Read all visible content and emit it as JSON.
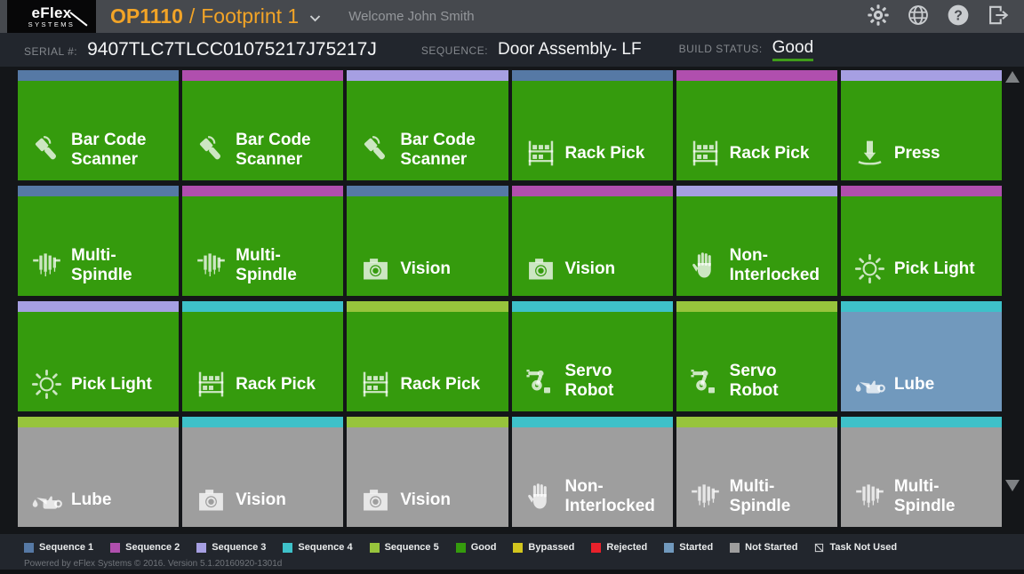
{
  "header": {
    "logo_line1": "eFlex",
    "logo_line2": "SYSTEMS",
    "station": "OP1110",
    "title_separator": "/",
    "footprint": "Footprint 1",
    "welcome": "Welcome John Smith",
    "help_glyph": "?"
  },
  "status_bar": {
    "serial_label": "SERIAL #:",
    "serial_value": "9407TLC7TLCC01075217J75217J",
    "sequence_label": "SEQUENCE:",
    "sequence_value": "Door Assembly- LF",
    "build_status_label": "BUILD STATUS:",
    "build_status_value": "Good"
  },
  "colors": {
    "sequence1": "#5679a5",
    "sequence2": "#b04fae",
    "sequence3": "#a69fe2",
    "sequence4": "#3ec1c9",
    "sequence5": "#97c43c",
    "good": "#359b0d",
    "bypassed": "#d2c51e",
    "rejected": "#e8212b",
    "started": "#7199bd",
    "not_started": "#9e9e9e",
    "accent_orange": "#f2a427",
    "status_underline": "#3f9d19"
  },
  "tiles": [
    {
      "label": "Bar Code\nScanner",
      "icon": "barcode-scanner-icon",
      "sequence": "1",
      "status": "good"
    },
    {
      "label": "Bar Code\nScanner",
      "icon": "barcode-scanner-icon",
      "sequence": "2",
      "status": "good"
    },
    {
      "label": "Bar Code\nScanner",
      "icon": "barcode-scanner-icon",
      "sequence": "3",
      "status": "good"
    },
    {
      "label": "Rack Pick",
      "icon": "rack-pick-icon",
      "sequence": "1",
      "status": "good"
    },
    {
      "label": "Rack Pick",
      "icon": "rack-pick-icon",
      "sequence": "2",
      "status": "good"
    },
    {
      "label": "Press",
      "icon": "press-icon",
      "sequence": "3",
      "status": "good"
    },
    {
      "label": "Multi-\nSpindle",
      "icon": "multi-spindle-icon",
      "sequence": "1",
      "status": "good"
    },
    {
      "label": "Multi-\nSpindle",
      "icon": "multi-spindle-icon",
      "sequence": "2",
      "status": "good"
    },
    {
      "label": "Vision",
      "icon": "vision-icon",
      "sequence": "1",
      "status": "good"
    },
    {
      "label": "Vision",
      "icon": "vision-icon",
      "sequence": "2",
      "status": "good"
    },
    {
      "label": "Non-\nInterlocked",
      "icon": "non-interlocked-icon",
      "sequence": "3",
      "status": "good"
    },
    {
      "label": "Pick Light",
      "icon": "pick-light-icon",
      "sequence": "2",
      "status": "good"
    },
    {
      "label": "Pick Light",
      "icon": "pick-light-icon",
      "sequence": "3",
      "status": "good"
    },
    {
      "label": "Rack Pick",
      "icon": "rack-pick-icon",
      "sequence": "4",
      "status": "good"
    },
    {
      "label": "Rack Pick",
      "icon": "rack-pick-icon",
      "sequence": "5",
      "status": "good"
    },
    {
      "label": "Servo\nRobot",
      "icon": "servo-robot-icon",
      "sequence": "4",
      "status": "good"
    },
    {
      "label": "Servo\nRobot",
      "icon": "servo-robot-icon",
      "sequence": "5",
      "status": "good"
    },
    {
      "label": "Lube",
      "icon": "lube-icon",
      "sequence": "4",
      "status": "started"
    },
    {
      "label": "Lube",
      "icon": "lube-icon",
      "sequence": "5",
      "status": "not_started"
    },
    {
      "label": "Vision",
      "icon": "vision-icon",
      "sequence": "4",
      "status": "not_started"
    },
    {
      "label": "Vision",
      "icon": "vision-icon",
      "sequence": "5",
      "status": "not_started"
    },
    {
      "label": "Non-\nInterlocked",
      "icon": "non-interlocked-icon",
      "sequence": "4",
      "status": "not_started"
    },
    {
      "label": "Multi-\nSpindle",
      "icon": "multi-spindle-icon",
      "sequence": "5",
      "status": "not_started"
    },
    {
      "label": "Multi-\nSpindle",
      "icon": "multi-spindle-icon",
      "sequence": "4",
      "status": "not_started"
    }
  ],
  "legend": {
    "items": [
      {
        "label": "Sequence 1",
        "color": "#5679a5"
      },
      {
        "label": "Sequence 2",
        "color": "#b04fae"
      },
      {
        "label": "Sequence 3",
        "color": "#a69fe2"
      },
      {
        "label": "Sequence 4",
        "color": "#3ec1c9"
      },
      {
        "label": "Sequence 5",
        "color": "#97c43c"
      },
      {
        "label": "Good",
        "color": "#359b0d"
      },
      {
        "label": "Bypassed",
        "color": "#d2c51e"
      },
      {
        "label": "Rejected",
        "color": "#e8212b"
      },
      {
        "label": "Started",
        "color": "#7199bd"
      },
      {
        "label": "Not Started",
        "color": "#9e9e9e"
      },
      {
        "label": "Task Not Used",
        "icon": "task-not-used-icon"
      }
    ]
  },
  "footer": {
    "text": "Powered by eFlex Systems © 2016. Version 5.1.20160920-1301d"
  }
}
